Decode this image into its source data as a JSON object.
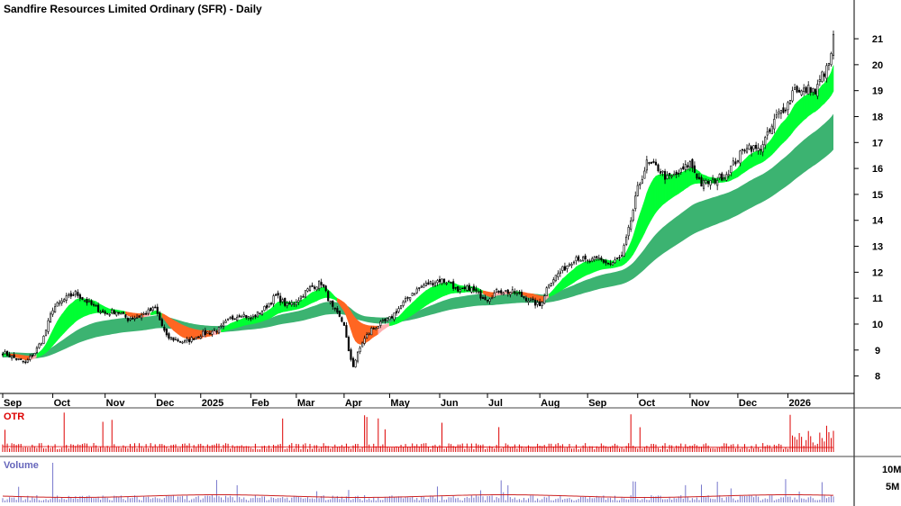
{
  "chart_data": {
    "type": "candlestick",
    "title": "Sandfire Resources Limited Ordinary (SFR) - Daily",
    "y_ticks": [
      8,
      9,
      10,
      11,
      12,
      13,
      14,
      15,
      16,
      17,
      18,
      19,
      20,
      21
    ],
    "ylim": [
      7.5,
      21.8
    ],
    "month_labels": [
      "Sep",
      "Oct",
      "Nov",
      "Dec",
      "2025",
      "Feb",
      "Mar",
      "Apr",
      "May",
      "Jun",
      "Jul",
      "Aug",
      "Sep",
      "Oct",
      "Nov",
      "Dec",
      "2026"
    ],
    "month_starts": [
      0,
      22,
      45,
      67,
      87,
      109,
      129,
      150,
      170,
      192,
      213,
      236,
      257,
      279,
      302,
      323,
      345
    ],
    "total_days": 366,
    "price_anchors": {
      "days": [
        0,
        5,
        10,
        14,
        18,
        22,
        28,
        32,
        38,
        45,
        50,
        55,
        60,
        67,
        72,
        80,
        87,
        95,
        100,
        105,
        109,
        115,
        120,
        125,
        129,
        135,
        140,
        145,
        150,
        152,
        154,
        158,
        162,
        170,
        175,
        180,
        185,
        192,
        197,
        200,
        205,
        210,
        213,
        218,
        225,
        230,
        236,
        240,
        246,
        252,
        257,
        262,
        267,
        272,
        275,
        279,
        283,
        288,
        292,
        297,
        302,
        307,
        312,
        318,
        323,
        327,
        332,
        337,
        340,
        345,
        348,
        350,
        355,
        357,
        360,
        362,
        364,
        365
      ],
      "close": [
        8.9,
        8.7,
        8.5,
        8.9,
        9.5,
        10.6,
        11.0,
        11.2,
        10.8,
        10.4,
        10.5,
        10.2,
        10.3,
        10.6,
        9.5,
        9.3,
        9.6,
        9.8,
        10.2,
        10.4,
        10.2,
        10.6,
        11.1,
        10.7,
        10.9,
        11.4,
        11.6,
        10.6,
        10.0,
        8.9,
        8.4,
        9.3,
        9.8,
        10.2,
        10.7,
        11.2,
        11.5,
        11.7,
        11.6,
        11.2,
        11.4,
        11.1,
        11.0,
        11.3,
        11.2,
        11.0,
        10.7,
        11.6,
        12.1,
        12.6,
        12.4,
        12.5,
        12.3,
        12.6,
        13.6,
        15.2,
        16.2,
        16.0,
        15.6,
        15.8,
        16.2,
        15.4,
        15.5,
        15.8,
        16.4,
        16.9,
        16.7,
        17.4,
        18.0,
        18.5,
        19.2,
        18.9,
        19.1,
        18.9,
        19.6,
        19.8,
        20.3,
        21.2
      ]
    },
    "otr_label": "OTR",
    "volume_label": "Volume",
    "volume_ticks": [
      "10M",
      "5M"
    ],
    "colors": {
      "up_candle": "#ffffff",
      "down_candle": "#000000",
      "short_ribbon_up": "#00ff33",
      "short_ribbon_down": "#ff6622",
      "short_ribbon_neutral": "#ffb0b0",
      "long_ribbon": "#3cb371",
      "otr": "#dd0000",
      "volume": "#7777cc",
      "volume_ma": "#cc2222",
      "otr_title": "#dd0000",
      "volume_title": "#6666bb"
    }
  }
}
